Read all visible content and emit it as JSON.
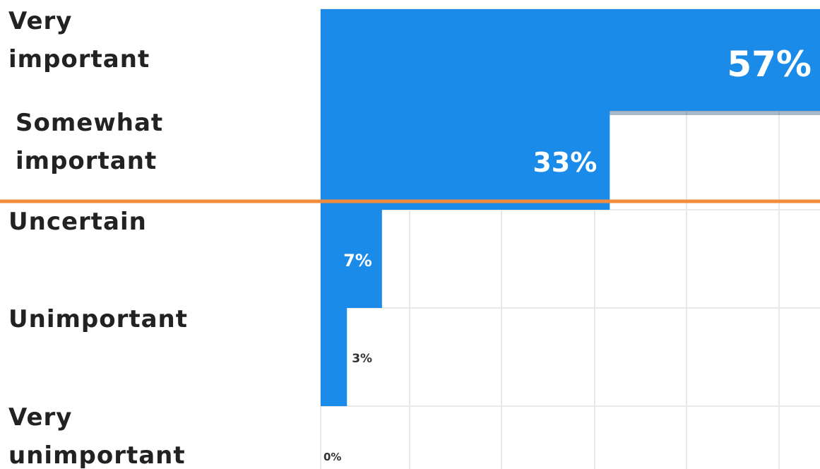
{
  "chart_data": {
    "type": "bar",
    "orientation": "horizontal",
    "title": "",
    "xlabel": "",
    "ylabel": "",
    "categories": [
      [
        "Very",
        "important"
      ],
      [
        "Somewhat",
        "important"
      ],
      [
        "Uncertain"
      ],
      [
        "Unimportant"
      ],
      [
        "Very",
        "unimportant"
      ]
    ],
    "values": [
      57,
      33,
      7,
      3,
      0
    ],
    "value_labels": [
      "57%",
      "33%",
      "7%",
      "3%",
      "0%"
    ],
    "xlim": [
      0,
      57
    ],
    "grid": true,
    "legend": "none"
  },
  "colors": {
    "bar": "#1a8be9",
    "bar_shadow": "#0d3a66",
    "grid": "#e9e9e9",
    "text": "#222222",
    "inside_label": "#ffffff",
    "outside_label": "#333333",
    "divider": "#f28c3c"
  }
}
